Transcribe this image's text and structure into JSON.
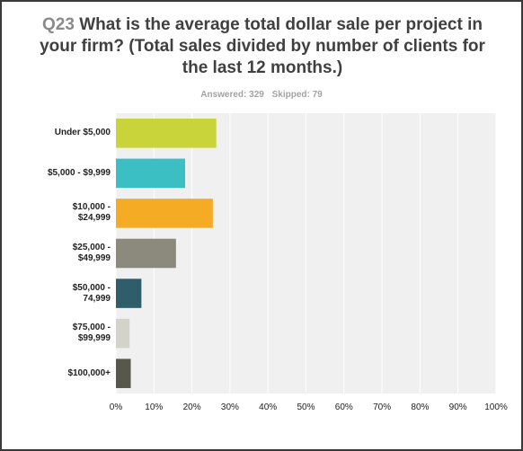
{
  "header": {
    "qnum": "Q23",
    "title_text": " What is the average total dollar sale per project in your firm? (Total sales divided by number of clients for the last 12 months.)",
    "answered": "Answered: 329",
    "skipped": "Skipped: 79"
  },
  "chart_data": {
    "type": "bar",
    "orientation": "horizontal",
    "categories": [
      "Under $5,000",
      "$5,000 - $9,999",
      "$10,000 - $24,999",
      "$25,000 - $49,999",
      "$50,000 - 74,999",
      "$75,000 - $99,999",
      "$100,000+"
    ],
    "category_lines": [
      [
        "Under $5,000"
      ],
      [
        "$5,000 - $9,999"
      ],
      [
        "$10,000 -",
        "$24,999"
      ],
      [
        "$25,000 -",
        "$49,999"
      ],
      [
        "$50,000 -",
        "74,999"
      ],
      [
        "$75,000 -",
        "$99,999"
      ],
      [
        "$100,000+"
      ]
    ],
    "values": [
      26.4,
      18.2,
      25.5,
      15.8,
      6.7,
      3.6,
      3.9
    ],
    "colors": [
      "#c9d43a",
      "#3bbfc2",
      "#f5ac24",
      "#8b8a7c",
      "#2f5e6a",
      "#d4d3c9",
      "#57574b"
    ],
    "xlim": [
      0,
      100
    ],
    "xticks": [
      "0%",
      "10%",
      "20%",
      "30%",
      "40%",
      "50%",
      "60%",
      "70%",
      "80%",
      "90%",
      "100%"
    ],
    "grid": true,
    "background": "#f0f0f0"
  }
}
